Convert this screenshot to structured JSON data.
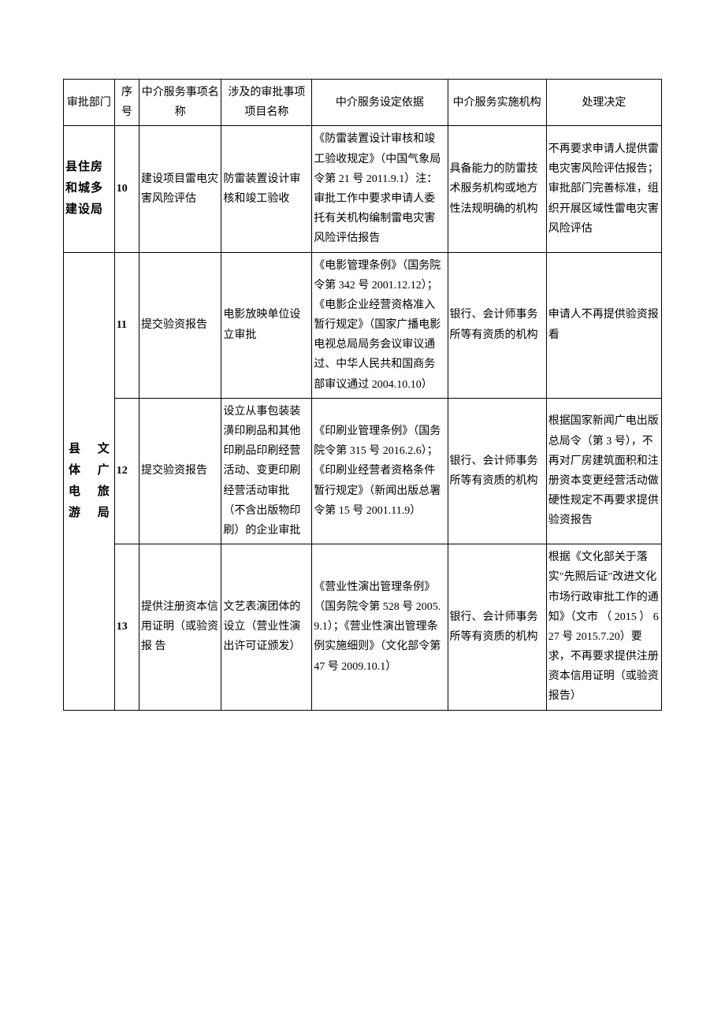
{
  "headers": {
    "dept": "审批部门",
    "num": "序号",
    "service": "中介服务事项名称",
    "item": "涉及的审批事项项目名称",
    "basis": "中介服务设定依据",
    "agency": "中介服务实施机构",
    "decision": "处理决定"
  },
  "depts": {
    "housing": "县住房和城多建设局",
    "culture": "县　文体　广电　旅游局"
  },
  "rows": [
    {
      "num": "10",
      "service": "建设项目雷电灾害风险评估",
      "item": "防雷装置设计审核和竣工验收",
      "basis": "《防雷装置设计审核和竣工验收规定》（中国气象局令第 21 号 2011.9.1）注：审批工作中要求申请人委托有关机构编制雷电灾害风险评估报告",
      "agency": "具备能力的防雷技术服务机构或地方性法规明确的机构",
      "decision": "不再要求申请人提供雷电灾害风险评估报告；审批部门完善标准，组织开展区域性雷电灾害风险评估"
    },
    {
      "num": "11",
      "service": "提交验资报告",
      "item": "电影放映单位设立审批",
      "basis": "《电影管理条例》（国务院令第 342 号 2001.12.12）；《电影企业经营资格准入暂行规定》（国家广播电影电视总局局务会议审议通过、中华人民共和国商务部审议通过 2004.10.10）",
      "agency": "银行、会计师事务所等有资质的机构",
      "decision": "申请人不再提供验资报看"
    },
    {
      "num": "12",
      "service": "提交验资报告",
      "item": "设立从事包装装潢印刷品和其他印刷品印刷经营活动、变更印刷经营活动审批（不含出版物印刷）的企业审批",
      "basis": "《印刷业管理条例》（国务院令第 315 号 2016.2.6）；《印刷业经营者资格条件暂行规定》（新闻出版总署令第 15 号 2001.11.9）",
      "agency": "银行、会计师事务所等有资质的机构",
      "decision": "根据国家新闻广电出版总局令（第 3 号），不再对厂房建筑面积和注册资本变更经营活动做硬性规定不再要求提供验资报告"
    },
    {
      "num": "13",
      "service": "提供注册资本信用证明（或验资报\n告",
      "item": "文艺表演团体的设立（营业性演出许可证颁发）",
      "basis": "《营业性演出管理条例》（国务院令第 528 号 2005.9.1）；《营业性演出管理条例实施细则》（文化部令第 47 号 2009.10.1）",
      "agency": "银行、会计师事务所等有资质的机构",
      "decision": "根据《文化部关于落实\"先照后证\"改进文化市场行政审批工作的通知》（文市\n（ 2015 ） 627 号 2015.7.20）要求，不再要求提供注册资本信用证明（或验资报告）"
    }
  ],
  "colors": {
    "border": "#000000",
    "background": "#ffffff",
    "text": "#000000"
  },
  "typography": {
    "body_fontsize": 14,
    "header_fontsize": 14,
    "dept_fontsize": 15,
    "line_height": 1.8
  }
}
